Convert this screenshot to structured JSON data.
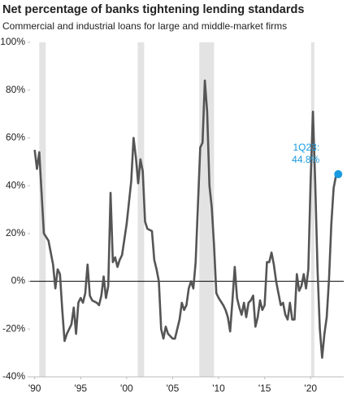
{
  "chart_data": {
    "type": "line",
    "title": "Net percentage of banks tightening lending standards",
    "subtitle": "Commercial and industrial loans for large and middle-market firms",
    "x": [
      1990.0,
      1990.25,
      1990.5,
      1990.75,
      1991.0,
      1991.5,
      1992.0,
      1992.25,
      1992.5,
      1992.75,
      1993.0,
      1993.25,
      1993.5,
      1994.0,
      1994.25,
      1994.5,
      1994.75,
      1995.0,
      1995.25,
      1995.5,
      1995.75,
      1996.0,
      1996.25,
      1996.75,
      1997.0,
      1997.25,
      1997.5,
      1997.75,
      1998.0,
      1998.25,
      1998.5,
      1998.75,
      1999.0,
      1999.25,
      1999.5,
      2000.0,
      2000.5,
      2000.75,
      2001.0,
      2001.25,
      2001.5,
      2001.75,
      2002.0,
      2002.25,
      2002.75,
      2003.0,
      2003.25,
      2003.5,
      2003.75,
      2004.0,
      2004.25,
      2004.5,
      2005.0,
      2005.25,
      2005.75,
      2006.0,
      2006.25,
      2006.5,
      2006.75,
      2007.0,
      2007.25,
      2007.5,
      2007.75,
      2008.0,
      2008.25,
      2008.5,
      2008.75,
      2009.0,
      2009.25,
      2009.5,
      2009.75,
      2010.0,
      2010.5,
      2010.75,
      2011.0,
      2011.25,
      2011.5,
      2011.75,
      2012.0,
      2012.25,
      2012.5,
      2012.75,
      2013.0,
      2013.25,
      2013.5,
      2013.75,
      2014.0,
      2014.25,
      2014.5,
      2014.75,
      2015.0,
      2015.25,
      2015.5,
      2015.75,
      2016.0,
      2016.25,
      2016.5,
      2016.75,
      2017.0,
      2017.25,
      2017.5,
      2017.75,
      2018.0,
      2018.25,
      2018.5,
      2018.75,
      2019.0,
      2019.25,
      2019.5,
      2019.75,
      2020.0,
      2020.25,
      2020.5,
      2020.75,
      2021.0,
      2021.25,
      2021.5,
      2021.75,
      2022.0,
      2022.25,
      2022.5,
      2022.75,
      2023.0
    ],
    "values": [
      55,
      47,
      54,
      37,
      20,
      17,
      7,
      -3,
      5,
      3,
      -12,
      -25,
      -22,
      -18,
      -11,
      -22,
      -9,
      -7,
      -9,
      -5,
      7,
      -6,
      -8,
      -9,
      -10,
      -6,
      2,
      -7,
      -2,
      37,
      8,
      10,
      6,
      9,
      11,
      24,
      42,
      60,
      52,
      41,
      51,
      46,
      25,
      22,
      21,
      9,
      5,
      0,
      -20,
      -24,
      -19,
      -22,
      -24,
      -24,
      -16,
      -9,
      -12,
      -10,
      -3,
      0,
      -3,
      8,
      32,
      56,
      58,
      84,
      71,
      40,
      31,
      15,
      -5,
      -7,
      -10,
      -12,
      -15,
      -21,
      -8,
      6,
      -7,
      -11,
      -14,
      -9,
      -15,
      -9,
      -8,
      -6,
      -19,
      -15,
      -8,
      -12,
      -10,
      8,
      8,
      12,
      7,
      0,
      -5,
      -10,
      -9,
      -14,
      -16,
      -9,
      -16,
      -16,
      3,
      -4,
      -2,
      3,
      -3,
      5,
      42,
      71,
      41,
      5,
      -20,
      -32,
      -22,
      -15,
      1,
      24,
      39,
      44,
      44.8
    ],
    "color": "#555555",
    "highlight_color": "#1a9ae0",
    "annotation": [
      "1Q23:",
      "44.8%"
    ],
    "recessions": [
      [
        1990.5,
        1991.2
      ],
      [
        2001.2,
        2001.9
      ],
      [
        2007.9,
        2009.5
      ],
      [
        2020.05,
        2020.4
      ]
    ],
    "recession_color": "#e3e3e3",
    "xlim": [
      1989.5,
      2023.6
    ],
    "xticks": [
      {
        "value": 1990,
        "label": "'90"
      },
      {
        "value": 1995,
        "label": "'95"
      },
      {
        "value": 2000,
        "label": "'00"
      },
      {
        "value": 2005,
        "label": "'05"
      },
      {
        "value": 2010,
        "label": "'10"
      },
      {
        "value": 2015,
        "label": "'15"
      },
      {
        "value": 2020,
        "label": "'20"
      }
    ],
    "ylim": [
      -40,
      100
    ],
    "yticks": [
      {
        "value": -40,
        "label": "-40%"
      },
      {
        "value": -20,
        "label": "-20%"
      },
      {
        "value": 0,
        "label": "0%"
      },
      {
        "value": 20,
        "label": "20%"
      },
      {
        "value": 40,
        "label": "40%"
      },
      {
        "value": 60,
        "label": "60%"
      },
      {
        "value": 80,
        "label": "80%"
      },
      {
        "value": 100,
        "label": "100%"
      }
    ]
  }
}
